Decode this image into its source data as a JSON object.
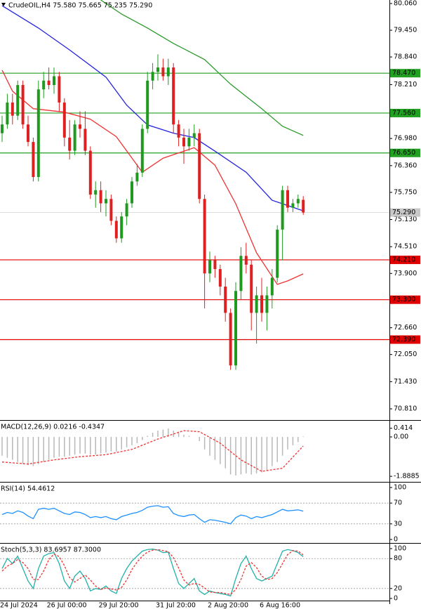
{
  "chart_data": [
    {
      "type": "candlestick",
      "title": "CrudeOIL,H4  75.580 75.665 75.235 75.290",
      "categories": [
        "24 Jul 2024",
        null,
        null,
        null,
        null,
        null,
        null,
        null,
        null,
        "26 Jul 00:00",
        null,
        null,
        null,
        null,
        null,
        null,
        null,
        null,
        null,
        "29 Jul 20:00",
        null,
        null,
        null,
        null,
        null,
        null,
        null,
        null,
        null,
        null,
        "31 Jul 20:00",
        null,
        null,
        null,
        null,
        null,
        null,
        null,
        null,
        null,
        "2 Aug 20:00",
        null,
        null,
        null,
        null,
        null,
        null,
        null,
        null,
        null,
        "6 Aug 16:00",
        null,
        null,
        null,
        null,
        null,
        null,
        null,
        null
      ],
      "open": [
        77.1,
        77.3,
        77.8,
        77.5,
        78.2,
        77.3,
        76.9,
        76.1,
        78.1,
        78.3,
        78.2,
        78.4,
        77.8,
        77.0,
        76.7,
        77.3,
        77.2,
        76.7,
        75.7,
        75.8,
        75.5,
        75.6,
        75.1,
        74.7,
        75.2,
        75.5,
        76.0,
        76.2,
        77.2,
        78.3,
        78.5,
        78.6,
        78.4,
        78.6,
        77.3,
        77.0,
        76.8,
        77.0,
        77.1,
        75.6,
        73.9,
        74.2,
        74.0,
        73.6,
        73.0,
        71.8,
        73.5,
        74.3,
        74.1,
        73.0,
        73.4,
        73.0,
        73.4,
        73.8,
        74.9,
        75.8,
        75.4,
        75.5,
        75.58
      ],
      "high": [
        77.5,
        78.0,
        78.0,
        78.3,
        78.3,
        77.5,
        77.0,
        78.3,
        78.5,
        78.6,
        78.6,
        78.5,
        77.9,
        77.4,
        77.4,
        77.6,
        77.6,
        76.8,
        76.0,
        76.0,
        75.8,
        75.7,
        75.2,
        75.3,
        75.6,
        76.1,
        76.4,
        77.3,
        78.5,
        78.7,
        78.9,
        78.8,
        78.8,
        78.7,
        77.4,
        77.2,
        77.2,
        77.3,
        77.2,
        75.7,
        74.4,
        74.3,
        74.1,
        73.8,
        73.1,
        73.7,
        74.5,
        74.6,
        74.2,
        73.6,
        73.8,
        73.6,
        74.0,
        75.0,
        75.9,
        75.9,
        75.6,
        75.7,
        75.665
      ],
      "low": [
        76.9,
        77.2,
        77.3,
        77.4,
        77.2,
        76.8,
        76.0,
        76.0,
        77.9,
        78.1,
        78.0,
        77.6,
        76.8,
        76.5,
        76.6,
        77.0,
        76.6,
        75.6,
        75.4,
        75.3,
        75.2,
        75.0,
        74.6,
        74.6,
        75.0,
        75.4,
        75.9,
        76.1,
        77.1,
        78.1,
        78.3,
        78.3,
        78.2,
        77.1,
        76.8,
        76.4,
        76.7,
        76.8,
        75.5,
        73.1,
        73.7,
        73.8,
        73.4,
        72.8,
        71.7,
        71.7,
        73.3,
        73.9,
        72.6,
        72.3,
        72.8,
        72.6,
        73.1,
        73.7,
        74.2,
        75.3,
        75.3,
        75.4,
        75.235
      ],
      "close": [
        77.3,
        77.8,
        77.5,
        78.2,
        77.3,
        76.9,
        76.1,
        78.1,
        78.3,
        78.2,
        78.4,
        77.8,
        77.0,
        76.7,
        77.3,
        77.2,
        76.7,
        75.7,
        75.8,
        75.5,
        75.6,
        75.1,
        74.7,
        75.2,
        75.5,
        76.0,
        76.2,
        77.2,
        78.3,
        78.5,
        78.6,
        78.4,
        78.6,
        77.3,
        77.0,
        76.8,
        77.0,
        77.1,
        75.6,
        73.9,
        74.2,
        74.0,
        73.6,
        73.0,
        71.8,
        73.5,
        74.3,
        74.1,
        73.0,
        73.4,
        73.0,
        73.4,
        73.8,
        74.9,
        75.8,
        75.4,
        75.5,
        75.6,
        75.29
      ],
      "up_color": "#1f9a1f",
      "down_color": "#e02020",
      "series": [
        {
          "color": "#2323e0",
          "x": [
            0,
            7,
            13,
            20,
            24,
            28,
            33,
            37,
            41,
            47,
            52,
            58
          ],
          "values": [
            80.01,
            79.5,
            79.0,
            78.38,
            77.74,
            77.29,
            77.1,
            77.0,
            76.69,
            76.21,
            75.57,
            75.33
          ]
        },
        {
          "color": "#f03333",
          "x": [
            0,
            2,
            6,
            12,
            17,
            22,
            27,
            31,
            35,
            37,
            41,
            45,
            49,
            53,
            55,
            58
          ],
          "values": [
            78.54,
            78.06,
            77.66,
            77.58,
            77.42,
            77.02,
            76.21,
            76.53,
            76.69,
            76.77,
            76.37,
            75.49,
            74.37,
            73.65,
            73.73,
            73.89
          ]
        },
        {
          "color": "#2a9a2a",
          "x": [
            19,
            23,
            28,
            33,
            39,
            44,
            50,
            54,
            58
          ],
          "values": [
            80.14,
            79.82,
            79.5,
            79.15,
            78.78,
            78.22,
            77.66,
            77.26,
            77.05
          ]
        }
      ],
      "levels": [
        {
          "value": 78.47,
          "label": "78.470",
          "color": "#22a022"
        },
        {
          "value": 77.56,
          "label": "77.560",
          "color": "#22a022"
        },
        {
          "value": 76.65,
          "label": "76.650",
          "color": "#22a022"
        },
        {
          "value": 74.21,
          "label": "74.210",
          "color": "#e00000"
        },
        {
          "value": 73.3,
          "label": "73.300",
          "color": "#e00000"
        },
        {
          "value": 72.39,
          "label": "72.390",
          "color": "#e00000"
        }
      ],
      "last": {
        "value": 75.29,
        "label": "75.290",
        "color": "#c8c8c8"
      },
      "ylim": [
        70.57,
        80.14
      ],
      "yticks": [
        {
          "value": 80.06,
          "label": "80.060"
        },
        {
          "value": 79.45,
          "label": "79.450"
        },
        {
          "value": 78.84,
          "label": "78.840"
        },
        {
          "value": 78.21,
          "label": "78.210"
        },
        {
          "value": 76.98,
          "label": "76.980"
        },
        {
          "value": 76.36,
          "label": "76.360"
        },
        {
          "value": 75.75,
          "label": "75.750"
        },
        {
          "value": 75.13,
          "label": "75.130"
        },
        {
          "value": 74.51,
          "label": "74.510"
        },
        {
          "value": 73.9,
          "label": "73.900"
        },
        {
          "value": 72.66,
          "label": "72.660"
        },
        {
          "value": 72.05,
          "label": "72.050"
        },
        {
          "value": 71.43,
          "label": "71.430"
        },
        {
          "value": 70.81,
          "label": "70.810"
        }
      ]
    },
    {
      "type": "macd",
      "title": "MACD(12,26,9) 0.0216 -0.4347",
      "color": "#b8b8b8",
      "values": [
        -0.9,
        -1.0,
        -1.1,
        -1.2,
        -1.3,
        -1.35,
        -1.4,
        -1.3,
        -1.2,
        -1.1,
        -1.0,
        -0.95,
        -0.95,
        -0.9,
        -0.85,
        -0.8,
        -0.8,
        -0.85,
        -0.85,
        -0.8,
        -0.75,
        -0.7,
        -0.7,
        -0.6,
        -0.5,
        -0.4,
        -0.3,
        -0.15,
        0.05,
        0.2,
        0.3,
        0.35,
        0.4,
        0.3,
        0.2,
        0.1,
        0.05,
        0.0,
        -0.2,
        -0.6,
        -0.9,
        -1.1,
        -1.3,
        -1.5,
        -1.8,
        -1.85,
        -1.8,
        -1.75,
        -1.8,
        -1.75,
        -1.7,
        -1.6,
        -1.4,
        -1.2,
        -0.9,
        -0.6,
        -0.4,
        -0.25,
        0.0216
      ],
      "series": [
        {
          "color": "#f03333",
          "style": "dashed",
          "x": [
            0,
            5,
            10,
            15,
            20,
            25,
            30,
            35,
            38,
            42,
            46,
            50,
            54,
            58
          ],
          "values": [
            -1.2,
            -1.3,
            -1.1,
            -0.95,
            -0.85,
            -0.6,
            -0.1,
            0.3,
            0.25,
            -0.3,
            -1.1,
            -1.65,
            -1.5,
            -0.4347
          ]
        }
      ],
      "ylim": [
        -2.12,
        0.74
      ],
      "yticks": [
        0.414,
        {
          "value": 0,
          "label": "0.00"
        },
        -1.8885
      ]
    },
    {
      "type": "oscillator",
      "title": "RSI(14) 54.4612",
      "series": [
        {
          "color": "#1e90ff",
          "style": "solid",
          "values": [
            48,
            52,
            50,
            55,
            52,
            45,
            40,
            58,
            60,
            58,
            60,
            55,
            50,
            48,
            53,
            52,
            48,
            42,
            44,
            42,
            44,
            40,
            38,
            44,
            47,
            50,
            52,
            56,
            62,
            64,
            65,
            62,
            63,
            50,
            46,
            44,
            47,
            48,
            40,
            33,
            38,
            37,
            35,
            33,
            30,
            42,
            47,
            45,
            40,
            44,
            42,
            45,
            48,
            53,
            58,
            55,
            56,
            57,
            54.4612
          ]
        }
      ],
      "levels": [
        70,
        30
      ],
      "ylim": [
        -5.4,
        108.1
      ],
      "yticks": [
        100,
        70,
        30,
        0
      ]
    },
    {
      "type": "oscillator",
      "title": "Stoch(5,3,3) 83.6957 87.3000",
      "series": [
        {
          "color": "#20b2aa",
          "style": "solid",
          "values": [
            60,
            80,
            70,
            85,
            60,
            35,
            20,
            60,
            85,
            90,
            92,
            70,
            35,
            20,
            45,
            55,
            40,
            15,
            20,
            18,
            25,
            15,
            10,
            40,
            60,
            75,
            85,
            95,
            98,
            99,
            97,
            92,
            93,
            60,
            30,
            20,
            30,
            40,
            15,
            8,
            15,
            12,
            10,
            8,
            5,
            40,
            70,
            85,
            60,
            40,
            35,
            40,
            45,
            70,
            95,
            98,
            96,
            92,
            83.6957
          ]
        },
        {
          "color": "#f03333",
          "style": "dashed",
          "values": [
            55,
            65,
            70,
            78,
            72,
            60,
            38,
            38,
            55,
            78,
            89,
            84,
            66,
            42,
            33,
            40,
            47,
            37,
            25,
            18,
            21,
            19,
            17,
            22,
            37,
            58,
            73,
            85,
            93,
            97,
            98,
            96,
            94,
            82,
            61,
            37,
            27,
            30,
            28,
            21,
            13,
            12,
            12,
            10,
            8,
            18,
            38,
            65,
            72,
            62,
            45,
            38,
            40,
            52,
            70,
            88,
            96,
            95,
            87.3
          ]
        }
      ],
      "levels": [
        80,
        20
      ],
      "ylim": [
        -11.3,
        108.5
      ],
      "yticks": [
        100,
        80,
        20,
        0
      ]
    }
  ]
}
